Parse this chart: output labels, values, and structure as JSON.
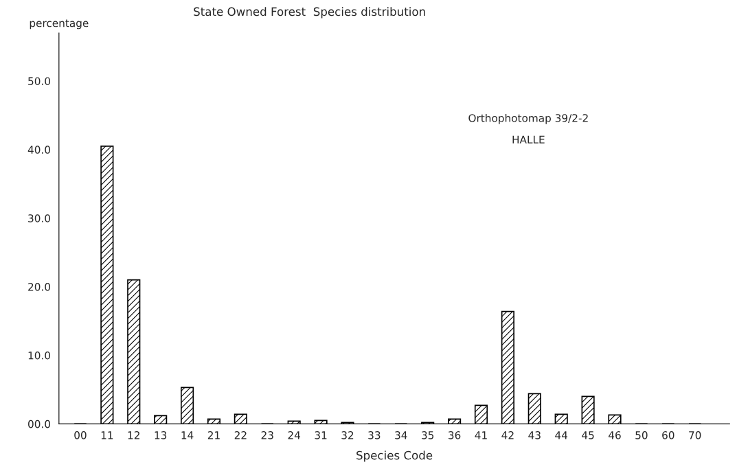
{
  "chart_data": {
    "type": "bar",
    "title": "State Owned Forest  Species distribution",
    "xlabel": "Species Code",
    "ylabel": "percentage",
    "categories": [
      "00",
      "11",
      "12",
      "13",
      "14",
      "21",
      "22",
      "23",
      "24",
      "31",
      "32",
      "33",
      "34",
      "35",
      "36",
      "41",
      "42",
      "43",
      "44",
      "45",
      "46",
      "50",
      "60",
      "70"
    ],
    "values": [
      0,
      40.5,
      21.0,
      1.2,
      5.3,
      0.7,
      1.4,
      0,
      0.4,
      0.5,
      0.2,
      0,
      0,
      0.2,
      0.7,
      2.7,
      16.4,
      4.4,
      1.4,
      4.0,
      1.3,
      0,
      0,
      0
    ],
    "color": "#000000",
    "ylim": [
      0,
      57
    ],
    "yticks": [
      {
        "value": 0,
        "label": "00.0"
      },
      {
        "value": 10,
        "label": "10.0"
      },
      {
        "value": 20,
        "label": "20.0"
      },
      {
        "value": 30,
        "label": "30.0"
      },
      {
        "value": 40,
        "label": "40.0"
      },
      {
        "value": 50,
        "label": "50.0"
      }
    ],
    "annotations": [
      "Orthophotomap 39/2-2",
      "HALLE"
    ],
    "grid": false,
    "legend": false
  }
}
